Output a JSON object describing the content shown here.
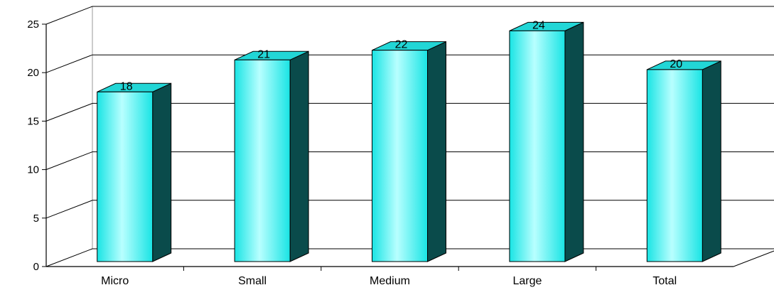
{
  "chart_data": {
    "type": "bar",
    "style": "3d-column",
    "categories": [
      "Micro",
      "Small",
      "Medium",
      "Large",
      "Total"
    ],
    "series": [
      {
        "values": [
          17.5,
          20.8,
          21.8,
          23.8,
          19.8
        ],
        "labels": [
          "18",
          "21",
          "22",
          "24",
          "20"
        ]
      }
    ],
    "ylim": [
      0,
      25
    ],
    "yticks": [
      "0",
      "5",
      "10",
      "15",
      "20",
      "25"
    ],
    "grid": true,
    "legend": "none",
    "colors": {
      "bar_front": "#19e4e4",
      "bar_highlight": "#b8ffff",
      "bar_side": "#0a4b4b",
      "bar_top": "#22d6d6",
      "gridline": "#000000",
      "axis": "#000000"
    }
  }
}
